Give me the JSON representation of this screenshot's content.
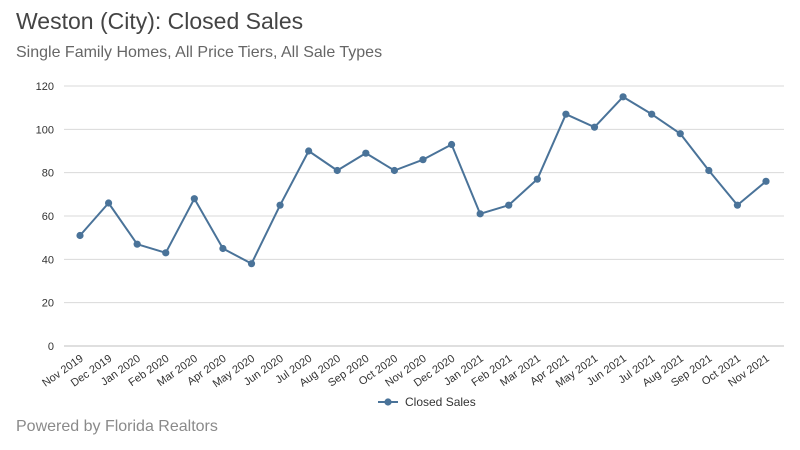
{
  "header": {
    "title": "Weston (City): Closed Sales",
    "subtitle": "Single Family Homes, All Price Tiers, All Sale Types"
  },
  "footer": {
    "text": "Powered by Florida Realtors"
  },
  "colors": {
    "series": "#4a7399",
    "grid": "#d9d9d9",
    "axis": "#bfbfbf"
  },
  "chart_data": {
    "type": "line",
    "title": "Weston (City): Closed Sales",
    "subtitle": "Single Family Homes, All Price Tiers, All Sale Types",
    "xlabel": "",
    "ylabel": "",
    "categories": [
      "Nov 2019",
      "Dec 2019",
      "Jan 2020",
      "Feb 2020",
      "Mar 2020",
      "Apr 2020",
      "May 2020",
      "Jun 2020",
      "Jul 2020",
      "Aug 2020",
      "Sep 2020",
      "Oct 2020",
      "Nov 2020",
      "Dec 2020",
      "Jan 2021",
      "Feb 2021",
      "Mar 2021",
      "Apr 2021",
      "May 2021",
      "Jun 2021",
      "Jul 2021",
      "Aug 2021",
      "Sep 2021",
      "Oct 2021",
      "Nov 2021"
    ],
    "series": [
      {
        "name": "Closed Sales",
        "values": [
          51,
          66,
          47,
          43,
          68,
          45,
          38,
          65,
          90,
          81,
          89,
          81,
          86,
          93,
          61,
          65,
          77,
          107,
          101,
          115,
          107,
          98,
          81,
          65,
          76
        ]
      }
    ],
    "ylim": [
      0,
      120
    ],
    "yticks": [
      0,
      20,
      40,
      60,
      80,
      100,
      120
    ],
    "grid": true,
    "legend": "bottom-center"
  }
}
